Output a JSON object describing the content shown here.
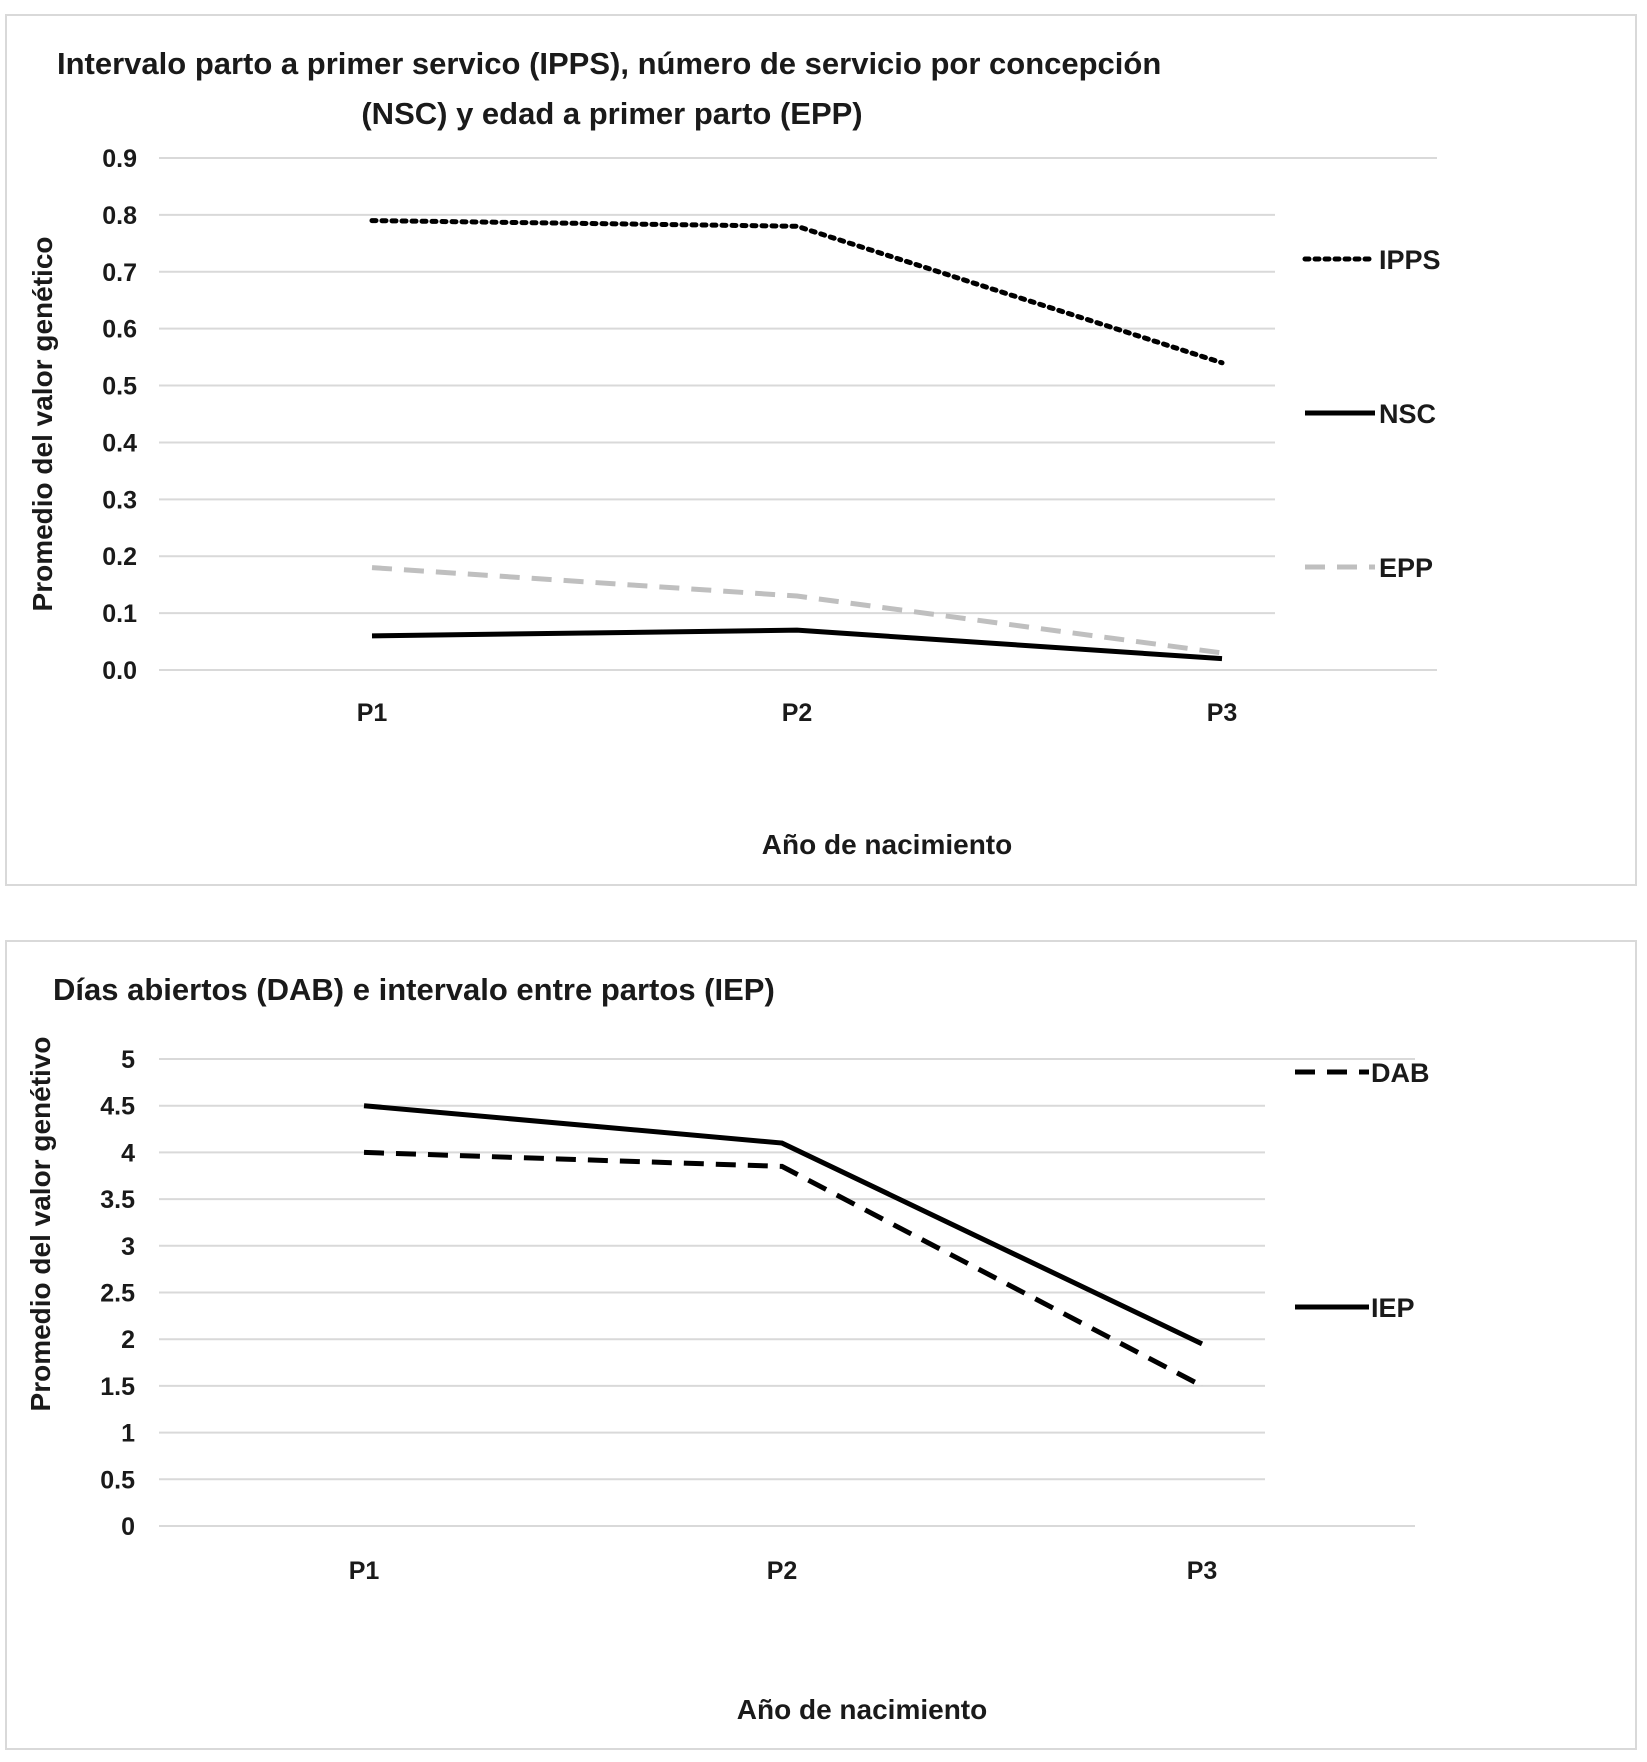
{
  "chart_data": [
    {
      "type": "line",
      "title_line1": "Intervalo parto a primer servico (IPPS), número de servicio por concepción",
      "title_line2": "(NSC) y edad a primer parto (EPP)",
      "xlabel": "Año de nacimiento",
      "ylabel": "Promedio del valor genético",
      "categories": [
        "P1",
        "P2",
        "P3"
      ],
      "ylim": [
        0,
        0.9
      ],
      "yticks": [
        "0.0",
        "0.1",
        "0.2",
        "0.3",
        "0.4",
        "0.5",
        "0.6",
        "0.7",
        "0.8",
        "0.9"
      ],
      "grid": true,
      "legend_position": "right",
      "series": [
        {
          "name": "IPPS",
          "values": [
            0.79,
            0.78,
            0.54
          ],
          "color": "#000000",
          "style": "dotted"
        },
        {
          "name": "NSC",
          "values": [
            0.06,
            0.07,
            0.02
          ],
          "color": "#000000",
          "style": "solid"
        },
        {
          "name": "EPP",
          "values": [
            0.18,
            0.13,
            0.03
          ],
          "color": "#bfbfbf",
          "style": "dashed"
        }
      ]
    },
    {
      "type": "line",
      "title_line1": "Días abiertos (DAB) e intervalo entre partos (IEP)",
      "title_line2": "",
      "xlabel": "Año de nacimiento",
      "ylabel": "Promedio del valor genétivo",
      "categories": [
        "P1",
        "P2",
        "P3"
      ],
      "ylim": [
        0,
        5
      ],
      "yticks": [
        "0",
        "0.5",
        "1",
        "1.5",
        "2",
        "2.5",
        "3",
        "3.5",
        "4",
        "4.5",
        "5"
      ],
      "grid": true,
      "legend_position": "right",
      "series": [
        {
          "name": "DAB",
          "values": [
            4.0,
            3.85,
            1.5
          ],
          "color": "#000000",
          "style": "dashed"
        },
        {
          "name": "IEP",
          "values": [
            4.5,
            4.1,
            1.95
          ],
          "color": "#000000",
          "style": "solid"
        }
      ]
    }
  ]
}
